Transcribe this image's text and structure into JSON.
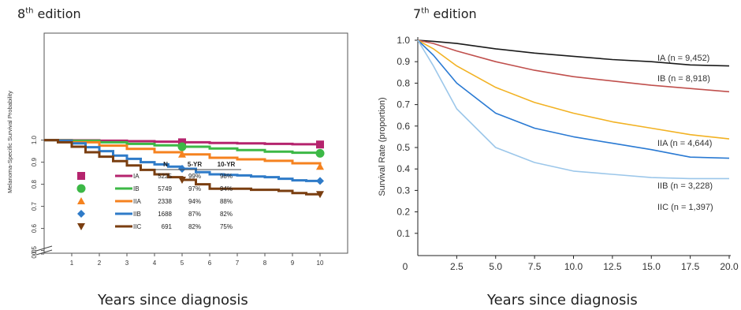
{
  "left_panel": {
    "edition_num": "8",
    "edition_suffix": "th",
    "edition_word": " edition",
    "x_caption": "Years since diagnosis"
  },
  "right_panel": {
    "edition_num": "7",
    "edition_suffix": "th",
    "edition_word": " edition",
    "x_caption": "Years since diagnosis"
  },
  "chart_data": [
    {
      "type": "line",
      "ylabel": "Melanoma-Specific Survival Probability",
      "xlabel": "",
      "x_ticks": [
        "1",
        "2",
        "3",
        "4",
        "5",
        "6",
        "7",
        "8",
        "9",
        "10"
      ],
      "y_ticks": [
        "0.0",
        "0.5",
        "0.6",
        "0.7",
        "0.8",
        "0.9",
        "1.0"
      ],
      "xlim": [
        0,
        10.6
      ],
      "ylim": [
        0.45,
        1.01
      ],
      "axis_break": true,
      "grid": false,
      "table": {
        "headers": [
          "N",
          "5-YR",
          "10-YR"
        ],
        "rows": [
          {
            "stage": "IA",
            "n": "5225",
            "yr5": "99%",
            "yr10": "98%"
          },
          {
            "stage": "IB",
            "n": "5749",
            "yr5": "97%",
            "yr10": "94%"
          },
          {
            "stage": "IIA",
            "n": "2338",
            "yr5": "94%",
            "yr10": "88%"
          },
          {
            "stage": "IIB",
            "n": "1688",
            "yr5": "87%",
            "yr10": "82%"
          },
          {
            "stage": "IIC",
            "n": "691",
            "yr5": "82%",
            "yr10": "75%"
          }
        ]
      },
      "series": [
        {
          "name": "IA",
          "color": "#b5246e",
          "marker": "square",
          "x": [
            0,
            0.5,
            1,
            2,
            3,
            4,
            5,
            6,
            7,
            8,
            9,
            10
          ],
          "y": [
            1.0,
            1.0,
            0.999,
            0.997,
            0.995,
            0.993,
            0.99,
            0.987,
            0.985,
            0.983,
            0.981,
            0.98
          ]
        },
        {
          "name": "IB",
          "color": "#3cb846",
          "marker": "circle",
          "x": [
            0,
            0.5,
            1,
            2,
            3,
            4,
            5,
            6,
            7,
            8,
            9,
            10
          ],
          "y": [
            1.0,
            0.999,
            0.997,
            0.99,
            0.983,
            0.976,
            0.97,
            0.962,
            0.955,
            0.948,
            0.943,
            0.94
          ]
        },
        {
          "name": "IIA",
          "color": "#f5821f",
          "marker": "triangle-up",
          "x": [
            0,
            0.5,
            1,
            2,
            3,
            4,
            5,
            6,
            7,
            8,
            9,
            10
          ],
          "y": [
            1.0,
            0.998,
            0.99,
            0.975,
            0.96,
            0.945,
            0.935,
            0.92,
            0.913,
            0.906,
            0.895,
            0.88
          ]
        },
        {
          "name": "IIB",
          "color": "#2f7bc8",
          "marker": "diamond",
          "x": [
            0,
            0.5,
            1,
            1.5,
            2,
            2.5,
            3,
            3.5,
            4,
            4.5,
            5,
            5.5,
            6,
            6.5,
            7,
            7.5,
            8,
            8.5,
            9,
            9.5,
            10
          ],
          "y": [
            1.0,
            0.997,
            0.985,
            0.968,
            0.95,
            0.93,
            0.915,
            0.9,
            0.89,
            0.88,
            0.87,
            0.855,
            0.845,
            0.842,
            0.84,
            0.835,
            0.832,
            0.825,
            0.818,
            0.815,
            0.815
          ]
        },
        {
          "name": "IIC",
          "color": "#7a3e10",
          "marker": "triangle-down",
          "x": [
            0,
            0.5,
            1,
            1.5,
            2,
            2.5,
            3,
            3.5,
            4,
            4.5,
            5,
            5.5,
            6,
            6.5,
            7,
            7.5,
            8,
            8.5,
            9,
            9.5,
            10
          ],
          "y": [
            1.0,
            0.99,
            0.97,
            0.945,
            0.925,
            0.905,
            0.885,
            0.865,
            0.845,
            0.832,
            0.82,
            0.8,
            0.78,
            0.78,
            0.78,
            0.775,
            0.775,
            0.77,
            0.76,
            0.755,
            0.755
          ]
        }
      ]
    },
    {
      "type": "line",
      "ylabel": "Survival Rate (proportion)",
      "xlabel": "",
      "x_ticks": [
        "0",
        "2.5",
        "5.0",
        "7.5",
        "10.0",
        "12.5",
        "15.0",
        "17.5",
        "20.0"
      ],
      "y_ticks": [
        "0.1",
        "0.2",
        "0.3",
        "0.4",
        "0.5",
        "0.6",
        "0.7",
        "0.8",
        "0.9",
        "1.0"
      ],
      "xlim": [
        0,
        20
      ],
      "ylim": [
        0,
        1.0
      ],
      "grid": false,
      "series": [
        {
          "name": "IA (n = 9,452)",
          "color": "#1a1a1a",
          "x": [
            0,
            1,
            2.5,
            5,
            7.5,
            10,
            12.5,
            15,
            17.5,
            20
          ],
          "y": [
            1.0,
            0.995,
            0.985,
            0.96,
            0.94,
            0.925,
            0.91,
            0.9,
            0.885,
            0.88
          ]
        },
        {
          "name": "IB (n = 8,918)",
          "color": "#c0504d",
          "x": [
            0,
            1,
            2.5,
            5,
            7.5,
            10,
            12.5,
            15,
            17.5,
            20
          ],
          "y": [
            1.0,
            0.985,
            0.95,
            0.9,
            0.86,
            0.83,
            0.81,
            0.79,
            0.775,
            0.76
          ]
        },
        {
          "name": "IIA (n = 4,644)",
          "color": "#f2b223",
          "x": [
            0,
            1,
            2.5,
            5,
            7.5,
            10,
            12.5,
            15,
            17.5,
            20
          ],
          "y": [
            1.0,
            0.96,
            0.88,
            0.78,
            0.71,
            0.66,
            0.62,
            0.59,
            0.56,
            0.54
          ]
        },
        {
          "name": "IIB (n = 3,228)",
          "color": "#2a7ad3",
          "x": [
            0,
            1,
            2.5,
            5,
            7.5,
            10,
            12.5,
            15,
            17.5,
            20
          ],
          "y": [
            1.0,
            0.93,
            0.8,
            0.66,
            0.59,
            0.55,
            0.52,
            0.49,
            0.455,
            0.45
          ]
        },
        {
          "name": "IIC (n = 1,397)",
          "color": "#9cc7ea",
          "x": [
            0,
            1,
            2.5,
            5,
            7.5,
            10,
            12.5,
            15,
            17.5,
            20
          ],
          "y": [
            1.0,
            0.88,
            0.68,
            0.5,
            0.43,
            0.39,
            0.375,
            0.36,
            0.355,
            0.355
          ]
        }
      ]
    }
  ]
}
